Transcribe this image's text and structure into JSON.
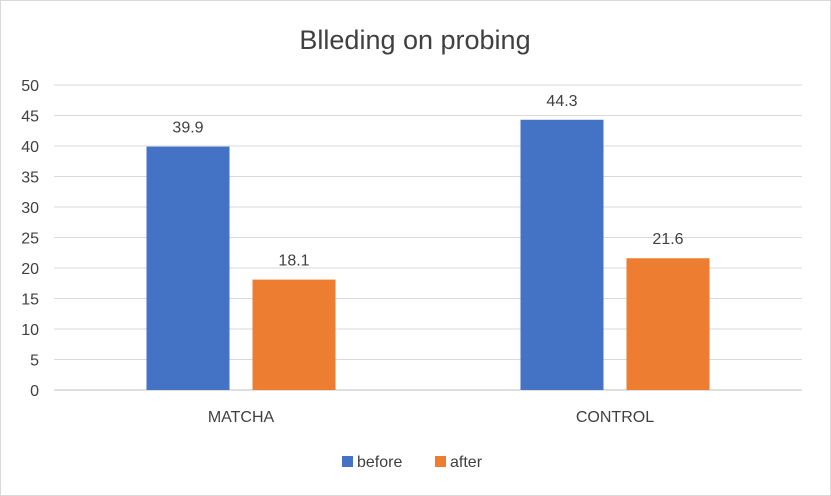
{
  "chart_data": {
    "type": "bar",
    "title": "Blleding on probing",
    "categories": [
      "MATCHA",
      "CONTROL"
    ],
    "series": [
      {
        "name": "before",
        "values": [
          39.9,
          44.3
        ],
        "color": "#4472C4"
      },
      {
        "name": "after",
        "values": [
          18.1,
          21.6
        ],
        "color": "#ED7D31"
      }
    ],
    "y_ticks": [
      "0",
      "5",
      "10",
      "15",
      "20",
      "25",
      "30",
      "35",
      "40",
      "45",
      "50"
    ],
    "ylim": [
      0,
      50
    ],
    "grid": true,
    "legend_position": "bottom",
    "gridline_color": "#d9d9d9",
    "axis_color": "#bfbfbf"
  }
}
